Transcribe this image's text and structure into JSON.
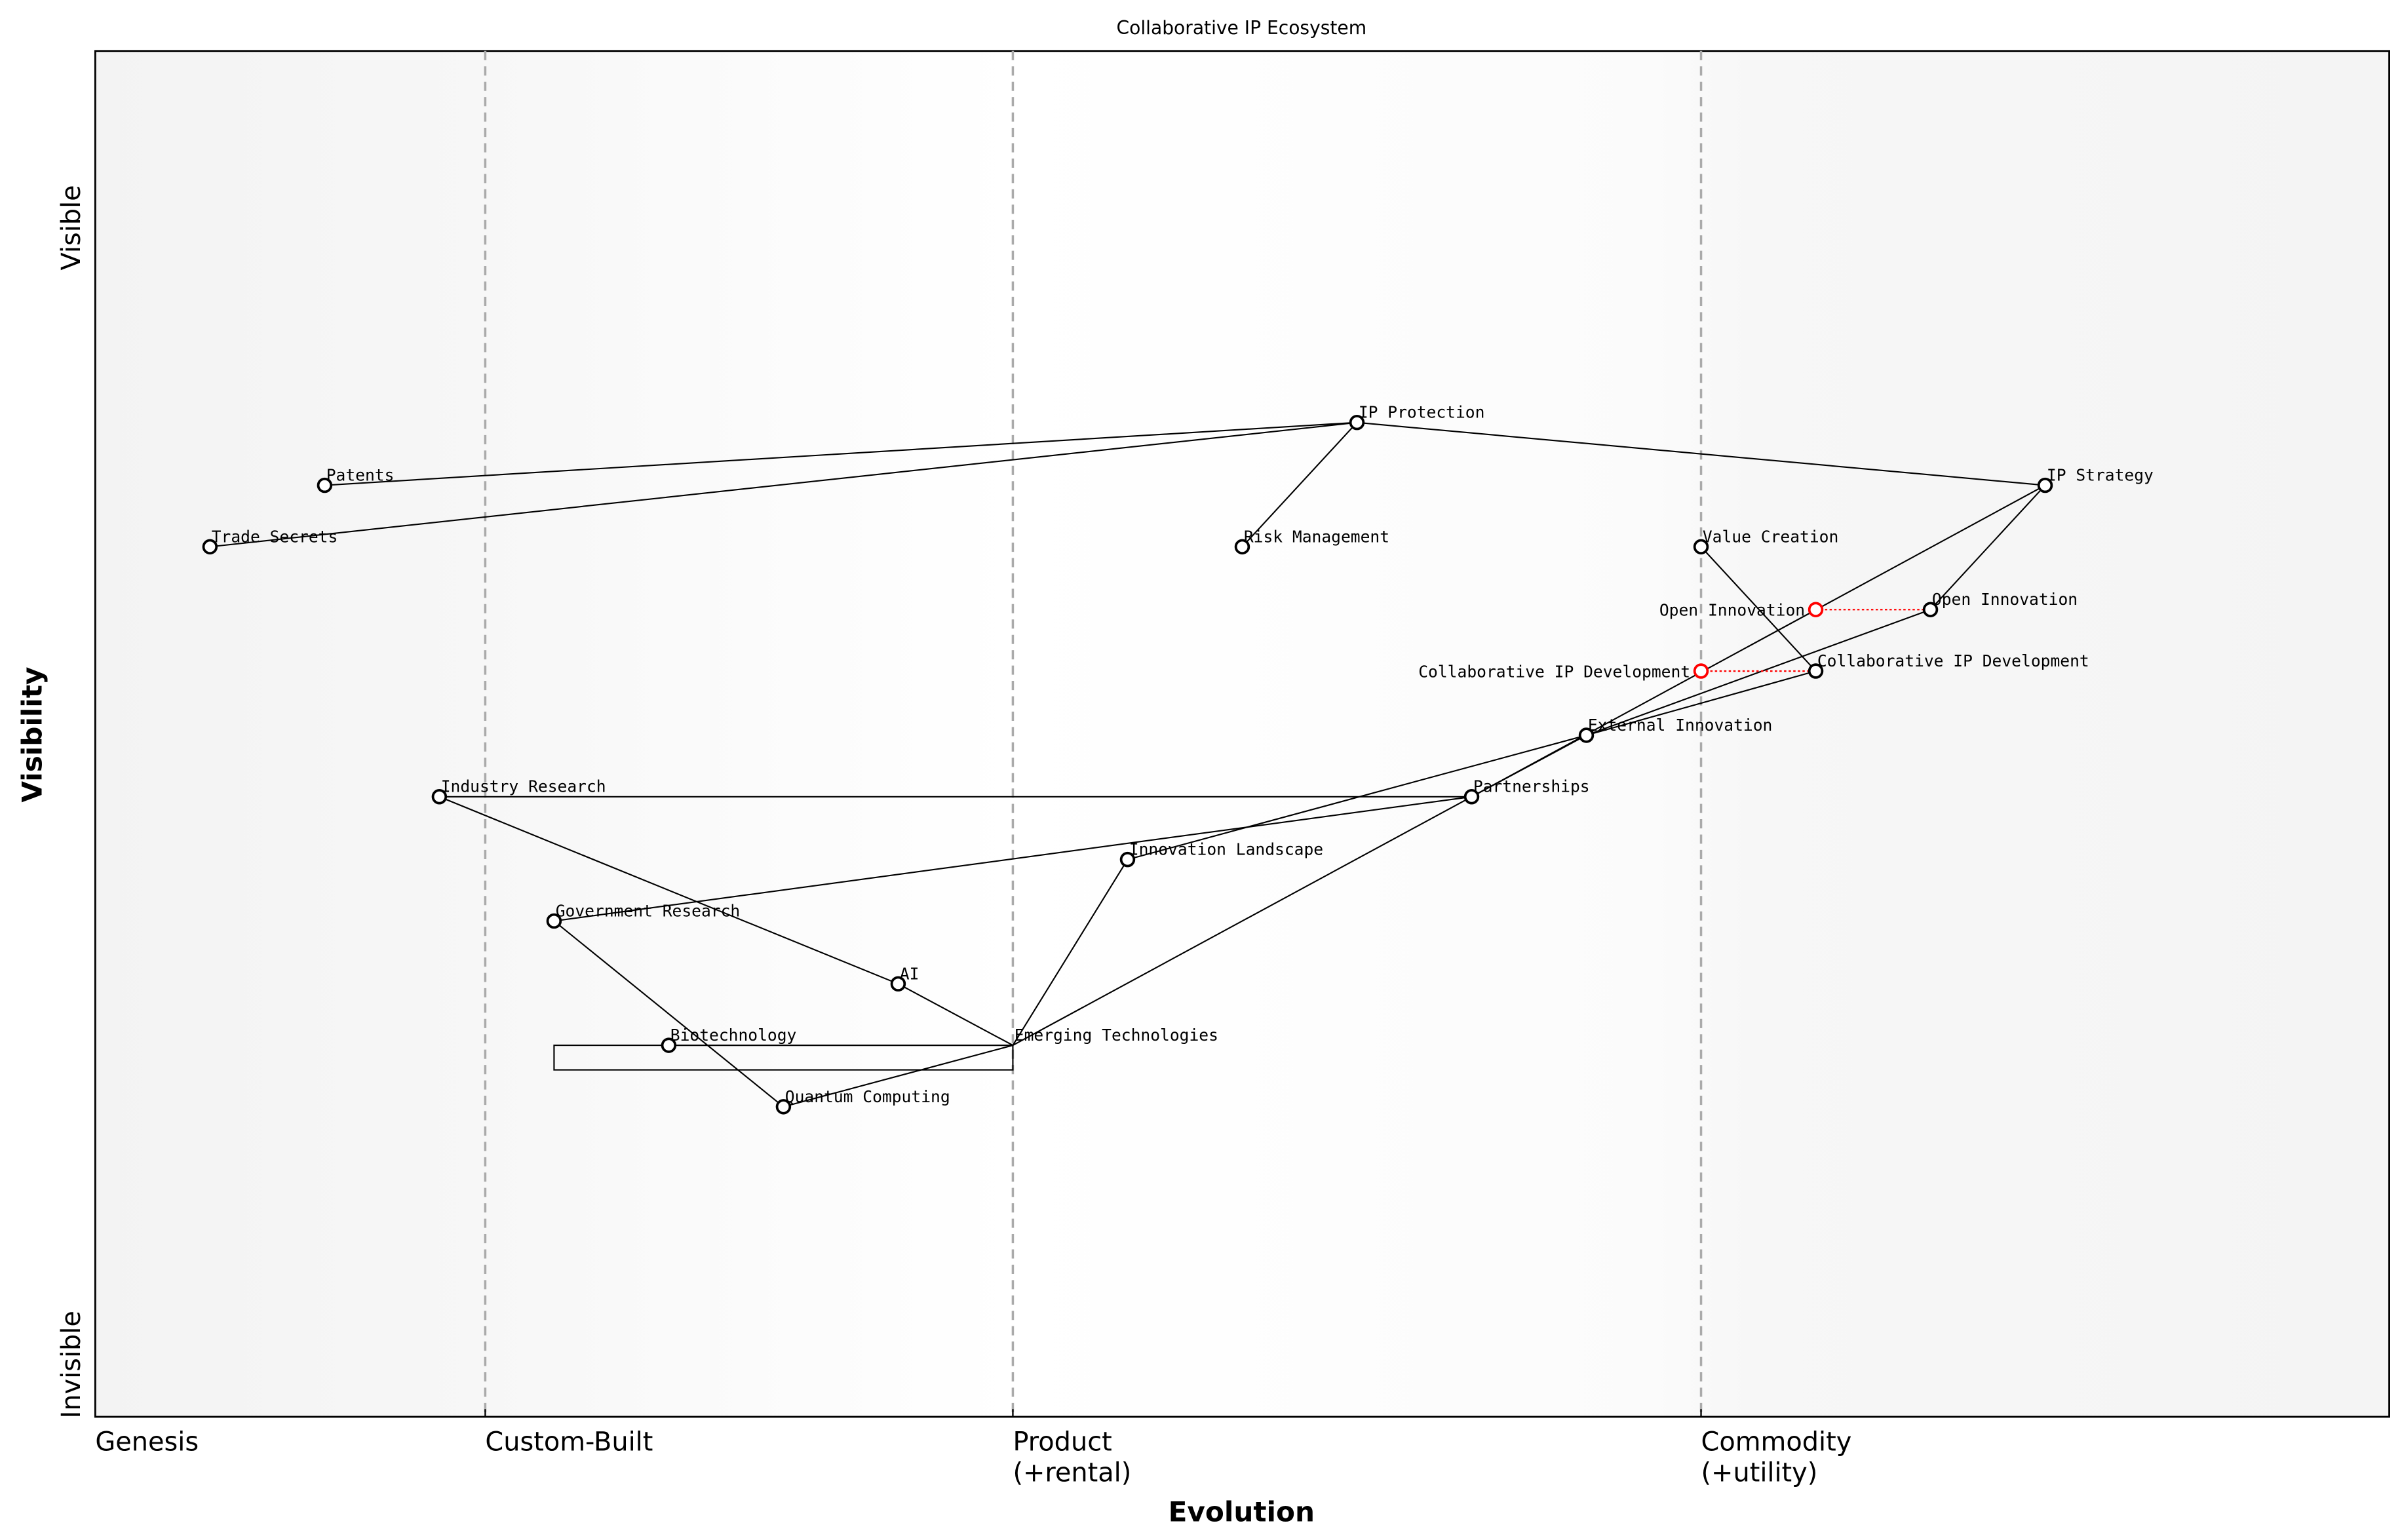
{
  "title": "Collaborative IP Ecosystem",
  "x_axis": {
    "label": "Evolution",
    "stages": [
      {
        "label": "Genesis",
        "line2": "",
        "at": 0
      },
      {
        "label": "Custom-Built",
        "line2": "",
        "at": 0.17
      },
      {
        "label": "Product",
        "line2": "(+rental)",
        "at": 0.4
      },
      {
        "label": "Commodity",
        "line2": "(+utility)",
        "at": 0.7
      }
    ]
  },
  "y_axis": {
    "label": "Visibility",
    "top": "Visible",
    "bottom": "Invisible"
  },
  "colors": {
    "node": "#000000",
    "inertia": "#ff0000",
    "stage_line": "#aaaaaa",
    "band": "#f5f5f5"
  },
  "chart_data": {
    "type": "wardley-map",
    "xlim": [
      0,
      1
    ],
    "ylim": [
      0,
      1
    ],
    "components": [
      {
        "name": "IP Protection",
        "evolution": 0.55,
        "visibility": 0.728
      },
      {
        "name": "Patents",
        "evolution": 0.1,
        "visibility": 0.682
      },
      {
        "name": "Trade Secrets",
        "evolution": 0.05,
        "visibility": 0.637
      },
      {
        "name": "Risk Management",
        "evolution": 0.5,
        "visibility": 0.637
      },
      {
        "name": "IP Strategy",
        "evolution": 0.85,
        "visibility": 0.682
      },
      {
        "name": "Value Creation",
        "evolution": 0.7,
        "visibility": 0.637
      },
      {
        "name": "Open Innovation",
        "evolution": 0.8,
        "visibility": 0.591
      },
      {
        "name": "Collaborative IP Development",
        "evolution": 0.75,
        "visibility": 0.546
      },
      {
        "name": "External Innovation",
        "evolution": 0.65,
        "visibility": 0.499
      },
      {
        "name": "Partnerships",
        "evolution": 0.6,
        "visibility": 0.454
      },
      {
        "name": "Industry Research",
        "evolution": 0.15,
        "visibility": 0.454
      },
      {
        "name": "Innovation Landscape",
        "evolution": 0.45,
        "visibility": 0.408
      },
      {
        "name": "Government Research",
        "evolution": 0.2,
        "visibility": 0.363
      },
      {
        "name": "AI",
        "evolution": 0.35,
        "visibility": 0.317
      },
      {
        "name": "Biotechnology",
        "evolution": 0.25,
        "visibility": 0.272
      },
      {
        "name": "Emerging Technologies",
        "evolution": 0.4,
        "visibility": 0.272,
        "hidden_marker": true
      },
      {
        "name": "Quantum Computing",
        "evolution": 0.3,
        "visibility": 0.227
      }
    ],
    "evolving": [
      {
        "name": "Open Innovation",
        "evolution": 0.75,
        "visibility": 0.591,
        "to": "Open Innovation"
      },
      {
        "name": "Collaborative IP Development",
        "evolution": 0.7,
        "visibility": 0.546,
        "to": "Collaborative IP Development"
      }
    ],
    "links": [
      [
        "Patents",
        "IP Protection"
      ],
      [
        "Trade Secrets",
        "IP Protection"
      ],
      [
        "IP Protection",
        "Risk Management"
      ],
      [
        "IP Protection",
        "IP Strategy"
      ],
      [
        "IP Strategy",
        "Open Innovation"
      ],
      [
        "IP Strategy",
        "Partnerships"
      ],
      [
        "Value Creation",
        "Collaborative IP Development"
      ],
      [
        "Open Innovation",
        "External Innovation"
      ],
      [
        "Collaborative IP Development",
        "External Innovation"
      ],
      [
        "External Innovation",
        "Partnerships"
      ],
      [
        "External Innovation",
        "Innovation Landscape"
      ],
      [
        "Industry Research",
        "Partnerships"
      ],
      [
        "Government Research",
        "Partnerships"
      ],
      [
        "Industry Research",
        "AI"
      ],
      [
        "AI",
        "Emerging Technologies"
      ],
      [
        "Government Research",
        "Quantum Computing"
      ],
      [
        "Quantum Computing",
        "Emerging Technologies"
      ],
      [
        "Emerging Technologies",
        "Innovation Landscape"
      ],
      [
        "Emerging Technologies",
        "Partnerships"
      ],
      [
        "Biotechnology",
        "Emerging Technologies"
      ]
    ]
  }
}
